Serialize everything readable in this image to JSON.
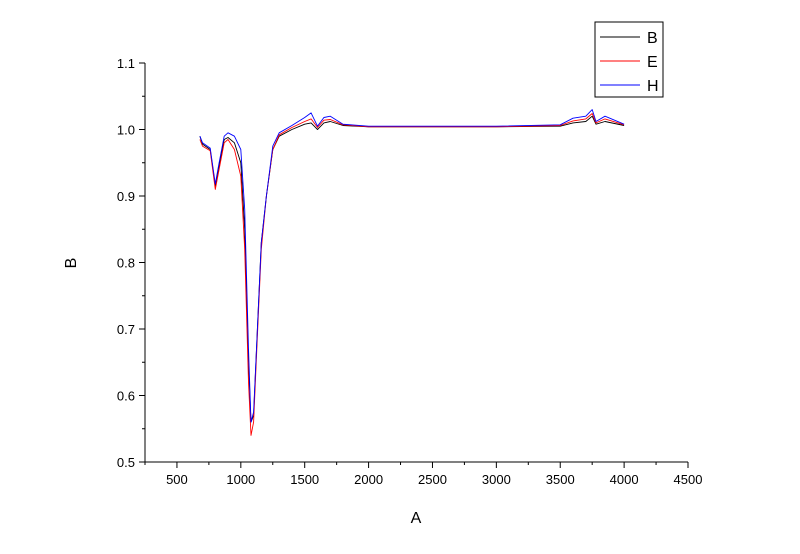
{
  "chart_data": {
    "type": "line",
    "title": "",
    "xlabel": "A",
    "ylabel": "B",
    "xlim": [
      250,
      4500
    ],
    "ylim": [
      0.5,
      1.1
    ],
    "xticks": [
      500,
      1000,
      1500,
      2000,
      2500,
      3000,
      3500,
      4000,
      4500
    ],
    "yticks": [
      0.5,
      0.6,
      0.7,
      0.8,
      0.9,
      1.0,
      1.1
    ],
    "ytick_labels": [
      "0.5",
      "0.6",
      "0.7",
      "0.8",
      "0.9",
      "1.0",
      "1.1"
    ],
    "grid": false,
    "legend_placement": "top-right",
    "series": [
      {
        "name": "B",
        "color": "#000000",
        "x": [
          680,
          700,
          760,
          800,
          830,
          870,
          900,
          950,
          1000,
          1030,
          1060,
          1080,
          1100,
          1130,
          1160,
          1200,
          1250,
          1300,
          1400,
          1500,
          1550,
          1600,
          1650,
          1700,
          1800,
          2000,
          3000,
          3500,
          3600,
          3700,
          3750,
          3780,
          3850,
          4000
        ],
        "y": [
          0.99,
          0.978,
          0.97,
          0.915,
          0.945,
          0.985,
          0.988,
          0.98,
          0.95,
          0.85,
          0.65,
          0.56,
          0.57,
          0.7,
          0.83,
          0.9,
          0.97,
          0.99,
          1.0,
          1.008,
          1.01,
          1.0,
          1.01,
          1.012,
          1.006,
          1.004,
          1.004,
          1.005,
          1.01,
          1.012,
          1.02,
          1.008,
          1.012,
          1.006
        ]
      },
      {
        "name": "E",
        "color": "#ff0000",
        "x": [
          680,
          700,
          760,
          800,
          830,
          870,
          900,
          950,
          1000,
          1030,
          1060,
          1080,
          1100,
          1130,
          1160,
          1200,
          1250,
          1300,
          1400,
          1500,
          1550,
          1600,
          1650,
          1700,
          1800,
          2000,
          3000,
          3500,
          3600,
          3700,
          3750,
          3780,
          3850,
          4000
        ],
        "y": [
          0.985,
          0.975,
          0.968,
          0.91,
          0.94,
          0.98,
          0.985,
          0.97,
          0.93,
          0.82,
          0.62,
          0.54,
          0.56,
          0.69,
          0.82,
          0.9,
          0.97,
          0.992,
          1.003,
          1.012,
          1.016,
          1.003,
          1.014,
          1.015,
          1.007,
          1.004,
          1.004,
          1.006,
          1.013,
          1.016,
          1.024,
          1.01,
          1.016,
          1.007
        ]
      },
      {
        "name": "H",
        "color": "#0000ff",
        "x": [
          680,
          700,
          760,
          800,
          830,
          870,
          900,
          950,
          1000,
          1030,
          1060,
          1080,
          1100,
          1130,
          1160,
          1200,
          1250,
          1300,
          1400,
          1500,
          1550,
          1600,
          1650,
          1700,
          1800,
          2000,
          3000,
          3500,
          3600,
          3700,
          3750,
          3780,
          3850,
          4000
        ],
        "y": [
          0.99,
          0.98,
          0.972,
          0.918,
          0.95,
          0.99,
          0.995,
          0.99,
          0.97,
          0.88,
          0.67,
          0.56,
          0.575,
          0.7,
          0.83,
          0.9,
          0.975,
          0.995,
          1.006,
          1.018,
          1.025,
          1.005,
          1.018,
          1.02,
          1.008,
          1.005,
          1.005,
          1.007,
          1.017,
          1.02,
          1.03,
          1.012,
          1.02,
          1.008
        ]
      }
    ]
  }
}
